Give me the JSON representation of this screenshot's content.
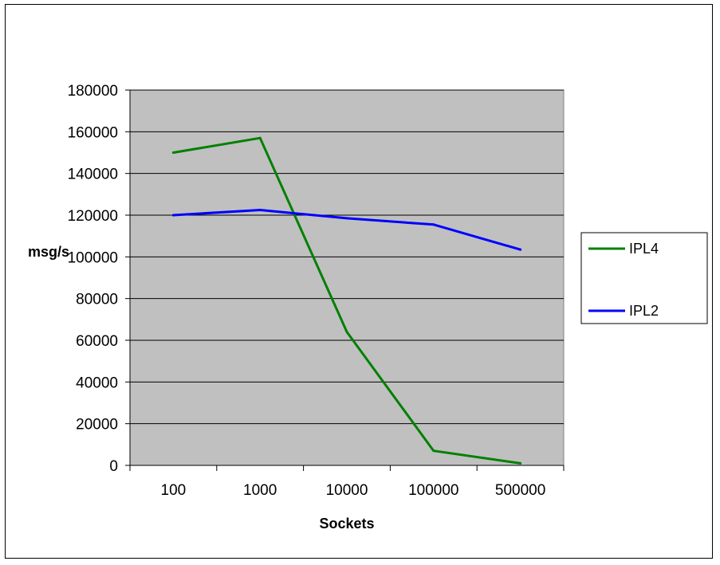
{
  "chart_data": {
    "type": "line",
    "xlabel": "Sockets",
    "ylabel": "msg/s",
    "categories": [
      "100",
      "1000",
      "10000",
      "100000",
      "500000"
    ],
    "ylim": [
      0,
      180000
    ],
    "yticks": [
      0,
      20000,
      40000,
      60000,
      80000,
      100000,
      120000,
      140000,
      160000,
      180000
    ],
    "grid": true,
    "legend_position": "right",
    "plot_background": "#c0c0c0",
    "series": [
      {
        "name": "IPL4",
        "color": "#008000",
        "values": [
          150000,
          157000,
          64000,
          7000,
          1000
        ]
      },
      {
        "name": "IPL2",
        "color": "#0000ff",
        "values": [
          120000,
          122500,
          118500,
          115500,
          103500
        ]
      }
    ]
  }
}
